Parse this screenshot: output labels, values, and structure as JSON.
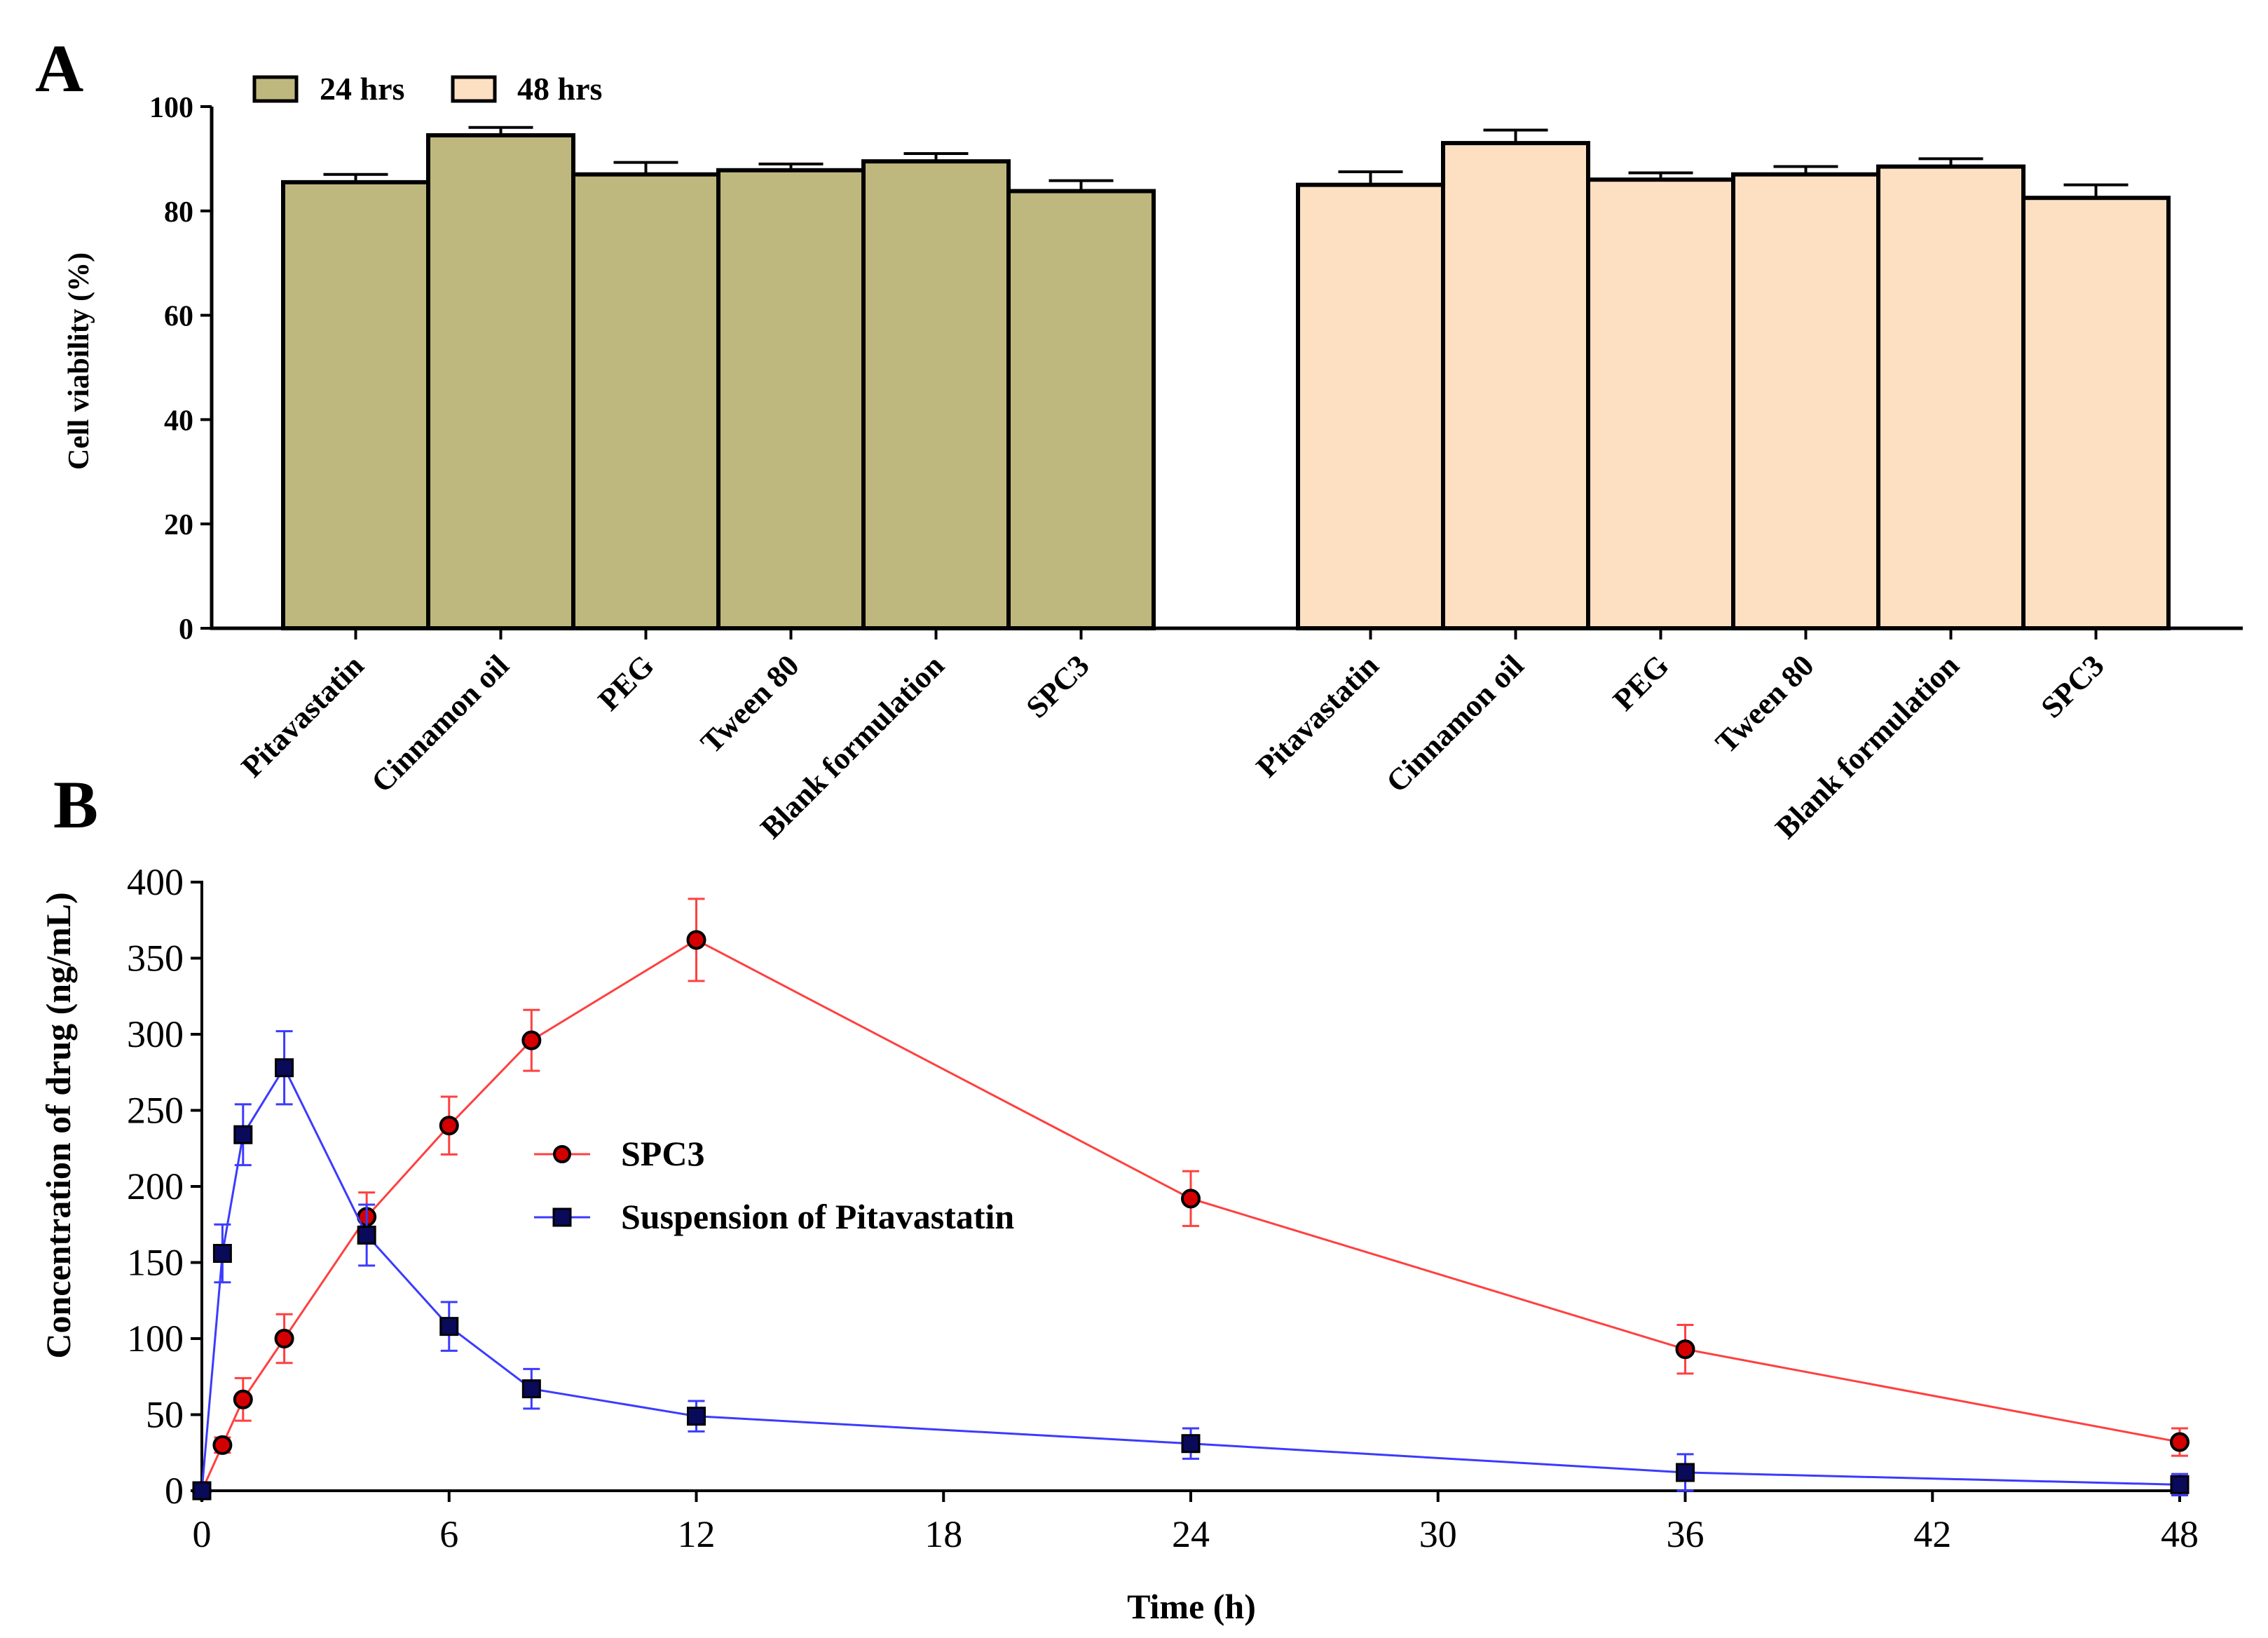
{
  "chart_data": [
    {
      "panel": "A",
      "type": "bar",
      "ylabel": "Cell viability (%)",
      "ylim": [
        0,
        100
      ],
      "yticks": [
        0,
        20,
        40,
        60,
        80,
        100
      ],
      "legend_position": "top-left",
      "groups": [
        {
          "name": "24 hrs",
          "color": "#bfb87e",
          "categories": [
            "Pitavastatin",
            "Cinnamon oil",
            "PEG",
            "Tween 80",
            "Blank formulation",
            "SPC3"
          ],
          "values": [
            85.5,
            94.5,
            87,
            87.8,
            89.5,
            83.8
          ],
          "errors": [
            1.5,
            1.5,
            2.3,
            1.2,
            1.5,
            2.0
          ]
        },
        {
          "name": "48 hrs",
          "color": "#fde0c2",
          "categories": [
            "Pitavastatin",
            "Cinnamon oil",
            "PEG",
            "Tween 80",
            "Blank formulation",
            "SPC3"
          ],
          "values": [
            85,
            93,
            86,
            87,
            88.5,
            82.5
          ],
          "errors": [
            2.5,
            2.5,
            1.3,
            1.5,
            1.5,
            2.5
          ]
        }
      ]
    },
    {
      "panel": "B",
      "type": "line",
      "xlabel": "Time (h)",
      "ylabel": "Concentration of drug (ng/mL)",
      "xlim": [
        0,
        48
      ],
      "ylim": [
        0,
        400
      ],
      "xticks": [
        0,
        6,
        12,
        18,
        24,
        30,
        36,
        42,
        48
      ],
      "yticks": [
        0,
        50,
        100,
        150,
        200,
        250,
        300,
        350,
        400
      ],
      "legend_position": "center",
      "series": [
        {
          "name": "SPC3",
          "color": "#ff4040",
          "marker": "circle",
          "marker_fill": "#d40000",
          "x": [
            0,
            0.5,
            1,
            2,
            4,
            6,
            8,
            12,
            24,
            36,
            48
          ],
          "y": [
            0,
            30,
            60,
            100,
            180,
            240,
            296,
            362,
            192,
            93,
            32
          ],
          "errors": [
            0,
            5,
            14,
            16,
            16,
            19,
            20,
            27,
            18,
            16,
            9
          ]
        },
        {
          "name": "Suspension of Pitavastatin",
          "color": "#3b3bff",
          "marker": "square",
          "marker_fill": "#0a0a5a",
          "x": [
            0,
            0.5,
            1,
            2,
            4,
            6,
            8,
            12,
            24,
            36,
            48
          ],
          "y": [
            0,
            156,
            234,
            278,
            168,
            108,
            67,
            49,
            31,
            12,
            4
          ],
          "errors": [
            0,
            19,
            20,
            24,
            20,
            16,
            13,
            10,
            10,
            12,
            7
          ]
        }
      ]
    }
  ],
  "panels": {
    "a_label": "A",
    "b_label": "B"
  }
}
